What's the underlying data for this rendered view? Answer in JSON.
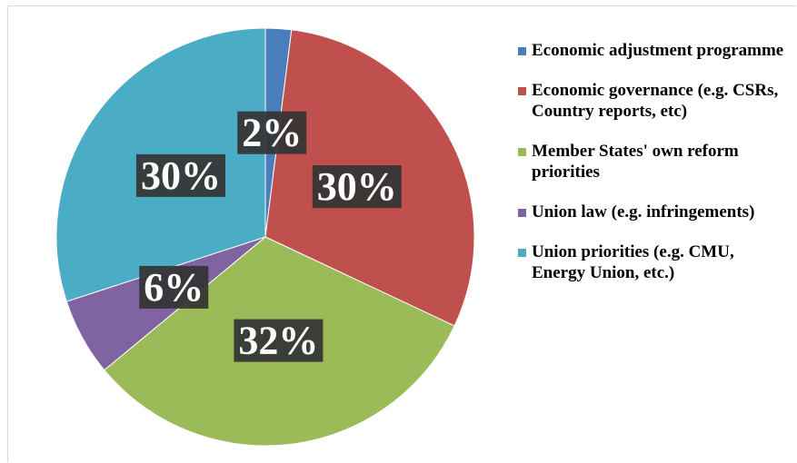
{
  "chart_data": {
    "type": "pie",
    "categories": [
      "Economic adjustment programme",
      "Economic governance (e.g. CSRs, Country reports, etc)",
      "Member States' own reform priorities",
      "Union law (e.g. infringements)",
      "Union priorities (e.g. CMU, Energy Union, etc.)"
    ],
    "values": [
      2,
      30,
      32,
      6,
      30
    ],
    "value_labels": [
      "2%",
      "30%",
      "32%",
      "6%",
      "30%"
    ],
    "colors": [
      "#4a7ebb",
      "#c0504d",
      "#9bbb59",
      "#8064a2",
      "#4bacc6"
    ],
    "legend": "right"
  }
}
